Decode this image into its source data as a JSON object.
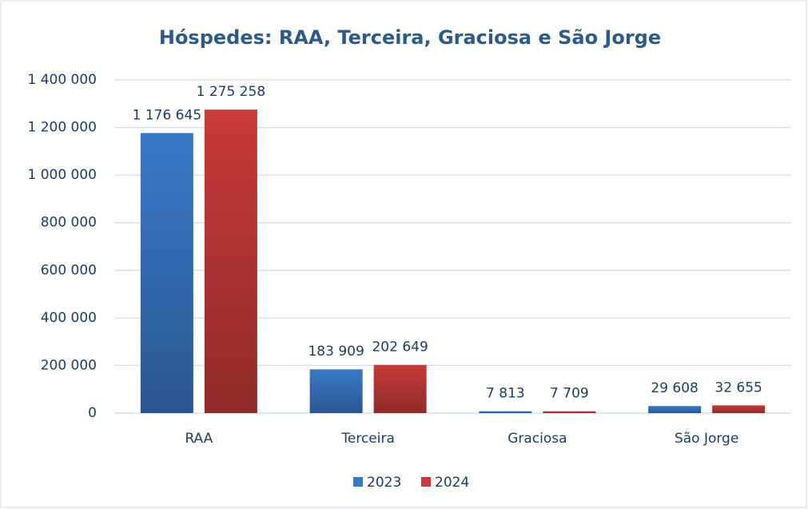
{
  "chart_data": {
    "type": "bar",
    "title": "Hóspedes: RAA, Terceira, Graciosa e São Jorge",
    "categories": [
      "RAA",
      "Terceira",
      "Graciosa",
      "São Jorge"
    ],
    "series": [
      {
        "name": "2023",
        "color": "#3a78c8",
        "values": [
          1176645,
          183909,
          7813,
          29608
        ],
        "value_labels": [
          "1 176 645",
          "183 909",
          "7 813",
          "29 608"
        ]
      },
      {
        "name": "2024",
        "color": "#c83a3a",
        "values": [
          1275258,
          202649,
          7709,
          32655
        ],
        "value_labels": [
          "1 275 258",
          "202 649",
          "7 709",
          "32 655"
        ]
      }
    ],
    "ylim": [
      0,
      1400000
    ],
    "yticks": [
      0,
      {
        "value": 200000,
        "label": "200 000"
      },
      {
        "value": 400000,
        "label": "400 000"
      },
      {
        "value": 600000,
        "label": "600 000"
      },
      {
        "value": 800000,
        "label": "800 000"
      },
      {
        "value": 1000000,
        "label": "1 000 000"
      },
      {
        "value": 1200000,
        "label": "1 200 000"
      },
      {
        "value": 1400000,
        "label": "1 400 000"
      }
    ],
    "grid": true,
    "legend": "bottom"
  }
}
